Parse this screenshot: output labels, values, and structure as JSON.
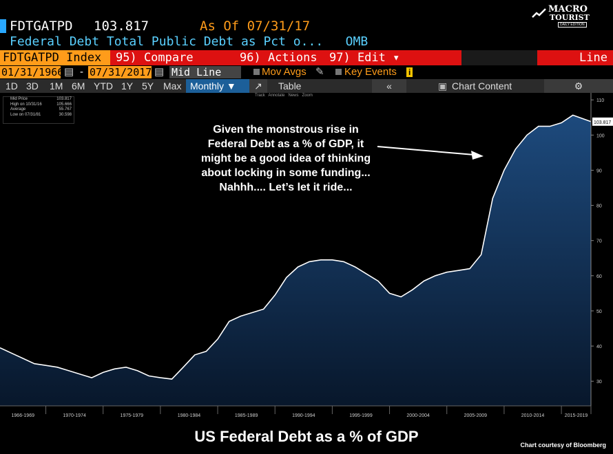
{
  "header": {
    "ticker": "FDTGATPD",
    "price": "103.817",
    "as_of": "As Of 07/31/17",
    "description": "Federal Debt Total Public Debt as Pct o...   OMB"
  },
  "logo": {
    "line1": "MACRO",
    "line2": "TOURIST",
    "line3": "DAILY EDITION"
  },
  "menu": {
    "index": "FDTGATPD Index",
    "compare": "95) Compare",
    "actions": "96) Actions ▾",
    "edit": "97) Edit ▾",
    "chart_type": "Line Chart"
  },
  "controls": {
    "start_date": "01/31/1966",
    "sep": "-",
    "end_date": "07/31/2017",
    "field": "Mid Line",
    "mov_avgs": "Mov Avgs",
    "key_events": "Key Events"
  },
  "periods": [
    "1D",
    "3D",
    "1M",
    "6M",
    "YTD",
    "1Y",
    "5Y",
    "Max"
  ],
  "frequency": "Monthly ▼",
  "table_label": "Table",
  "chart_content_label": "Chart Content",
  "tools": [
    "Track",
    "Annotate",
    "News",
    "Zoom"
  ],
  "legend": [
    {
      "label": "Mid Price",
      "value": "103.817"
    },
    {
      "label": "High on 10/31/16",
      "value": "105.666"
    },
    {
      "label": "Average",
      "value": "55.767"
    },
    {
      "label": "Low on 07/31/81",
      "value": "30.598"
    }
  ],
  "annotation": "Given the monstrous rise in Federal Debt as a % of GDP, it might be a good idea of thinking about locking in some funding... Nahhh.... Let’s let it ride...",
  "title": "US Federal Debt as a % of GDP",
  "credit": "Chart courtesy of Bloomberg",
  "colors": {
    "area": "#14335a",
    "line": "#ffffff",
    "accent": "#ff9c1a",
    "cyan": "#5ad0ff"
  },
  "chart_data": {
    "type": "area",
    "title": "US Federal Debt as a % of GDP",
    "x": [
      1966,
      1967,
      1968,
      1969,
      1970,
      1971,
      1972,
      1973,
      1974,
      1975,
      1976,
      1977,
      1978,
      1979,
      1980,
      1981,
      1982,
      1983,
      1984,
      1985,
      1986,
      1987,
      1988,
      1989,
      1990,
      1991,
      1992,
      1993,
      1994,
      1995,
      1996,
      1997,
      1998,
      1999,
      2000,
      2001,
      2002,
      2003,
      2004,
      2005,
      2006,
      2007,
      2008,
      2009,
      2010,
      2011,
      2012,
      2013,
      2014,
      2015,
      2016,
      2017.58
    ],
    "values": [
      39.5,
      38.0,
      36.5,
      35.0,
      34.5,
      34.0,
      33.0,
      32.0,
      31.0,
      32.5,
      33.5,
      34.0,
      33.0,
      31.5,
      31.0,
      30.6,
      34.0,
      37.5,
      38.5,
      42.0,
      47.0,
      48.5,
      49.5,
      50.5,
      54.5,
      59.5,
      62.5,
      64.0,
      64.5,
      64.5,
      64.0,
      62.5,
      60.5,
      58.5,
      55.0,
      54.0,
      56.0,
      58.5,
      60.0,
      61.0,
      61.5,
      62.0,
      66.0,
      82.0,
      90.0,
      96.0,
      100.0,
      102.5,
      102.5,
      103.5,
      105.666,
      103.817
    ],
    "xlim": [
      1966,
      2017.58
    ],
    "ylim": [
      23,
      112
    ],
    "y_ticks": [
      30,
      40,
      50,
      60,
      70,
      80,
      90,
      100,
      110
    ],
    "x_tick_labels": [
      "1966-1969",
      "1970-1974",
      "1975-1979",
      "1980-1984",
      "1985-1989",
      "1990-1994",
      "1995-1999",
      "2000-2004",
      "2005-2009",
      "2010-2014",
      "2015-2019"
    ],
    "last_value_label": "103.817",
    "grid": false
  }
}
